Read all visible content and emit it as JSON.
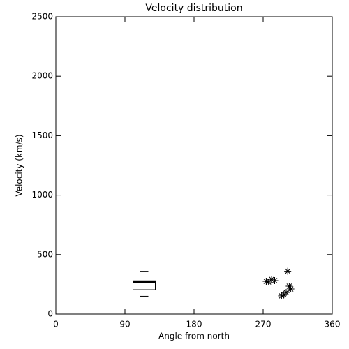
{
  "chart_data": {
    "type": "scatter",
    "title": "Velocity distribution",
    "x_label": "Angle from north",
    "y_label": "Velocity (km/s)",
    "xlim": [
      0,
      360
    ],
    "xticks": [
      0,
      90,
      180,
      270,
      360
    ],
    "ylim": [
      0,
      2500
    ],
    "yticks": [
      0,
      500,
      1000,
      1500,
      2000,
      2500
    ],
    "color": "#000000",
    "x": [
      274,
      277,
      281,
      285,
      294,
      297,
      300,
      302,
      304,
      306
    ],
    "values": [
      276,
      270,
      293,
      282,
      153,
      164,
      182,
      360,
      235,
      211
    ],
    "box": {
      "x": 115,
      "whisker_low": 150,
      "q1": 205,
      "median": 270,
      "q3": 280,
      "whisker_high": 360
    }
  }
}
